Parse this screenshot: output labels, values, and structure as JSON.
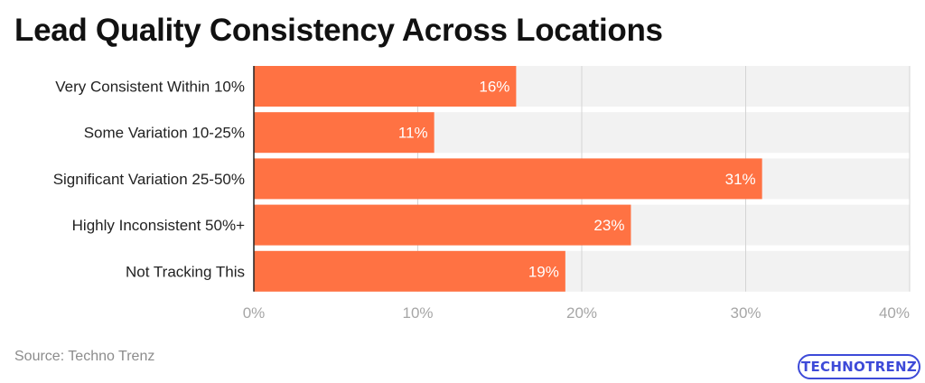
{
  "title": "Lead Quality Consistency Across Locations",
  "source": "Source: Techno Trenz",
  "logo_text": "TECHNOTRENZ",
  "colors": {
    "bar": "#ff7243",
    "track": "#f2f2f2",
    "grid": "#d4d4d4",
    "axis": "#222222",
    "tick": "#a6a6a6"
  },
  "chart_data": {
    "type": "bar",
    "orientation": "horizontal",
    "categories": [
      "Very Consistent Within 10%",
      "Some Variation 10-25%",
      "Significant Variation 25-50%",
      "Highly Inconsistent 50%+",
      "Not Tracking This"
    ],
    "values": [
      16,
      11,
      31,
      23,
      19
    ],
    "value_labels": [
      "16%",
      "11%",
      "31%",
      "23%",
      "19%"
    ],
    "xlim": [
      0,
      40
    ],
    "xticks": [
      0,
      10,
      20,
      30,
      40
    ],
    "xtick_labels": [
      "0%",
      "10%",
      "20%",
      "30%",
      "40%"
    ],
    "grid": true
  }
}
